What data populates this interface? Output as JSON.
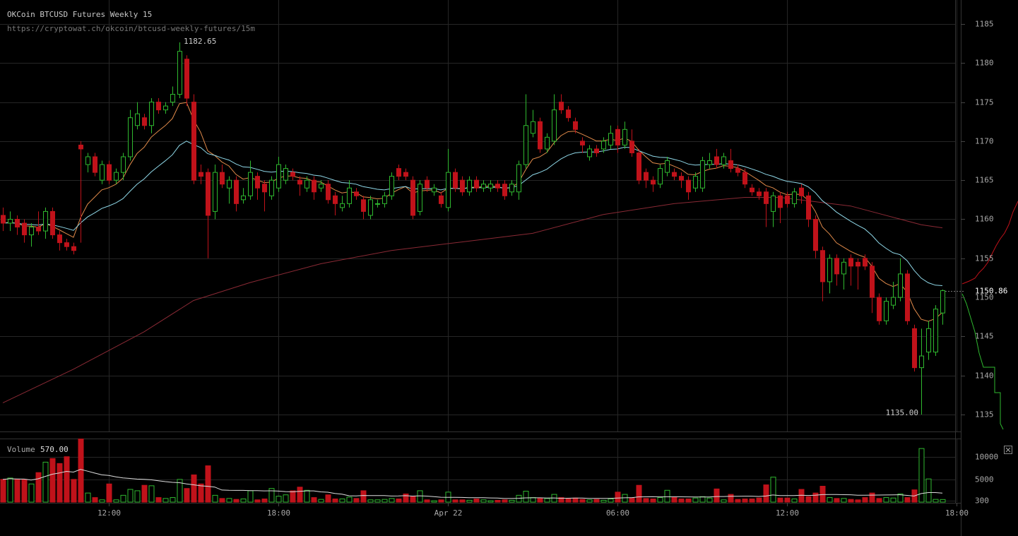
{
  "chart_data": {
    "type": "candlestick",
    "title": "OKCoin BTCUSD Futures Weekly 15",
    "subtitle": "https://cryptowat.ch/okcoin/btcusd-weekly-futures/15m",
    "xlim": [
      -0.4,
      135.6
    ],
    "xticks": [
      {
        "value": 15,
        "label": "12:00"
      },
      {
        "value": 39,
        "label": "18:00"
      },
      {
        "value": 63,
        "label": "Apr 22"
      },
      {
        "value": 87,
        "label": "06:00"
      },
      {
        "value": 111,
        "label": "12:00"
      },
      {
        "value": 135,
        "label": "18:00"
      }
    ],
    "ylim": [
      1132.83,
      1188.07
    ],
    "yticks": [
      1135,
      1140,
      1145,
      1150,
      1155,
      1160,
      1165,
      1170,
      1175,
      1180,
      1185
    ],
    "up_color": "#2fb82f",
    "down_color": "#c0121a",
    "grid": true,
    "candles": [
      [
        1160.5,
        1161.5,
        1158.5,
        1159.5
      ],
      [
        1159.5,
        1161,
        1158.5,
        1160
      ],
      [
        1160,
        1160.5,
        1158,
        1159
      ],
      [
        1159.5,
        1160,
        1157,
        1158
      ],
      [
        1158,
        1159.5,
        1156.5,
        1159
      ],
      [
        1159,
        1161,
        1158,
        1158.5
      ],
      [
        1158.5,
        1161.5,
        1157.5,
        1161
      ],
      [
        1161,
        1161.5,
        1157.5,
        1158
      ],
      [
        1158,
        1158.5,
        1156,
        1157
      ],
      [
        1157,
        1157.5,
        1156,
        1156.5
      ],
      [
        1156.5,
        1157,
        1155.5,
        1156
      ],
      [
        1169.5,
        1170,
        1157,
        1169
      ],
      [
        1167,
        1168.5,
        1166,
        1168
      ],
      [
        1168,
        1168.5,
        1165.5,
        1166
      ],
      [
        1165,
        1167.5,
        1164.5,
        1167
      ],
      [
        1167,
        1167.5,
        1164.5,
        1165
      ],
      [
        1165,
        1166.5,
        1164.5,
        1166
      ],
      [
        1166,
        1168.5,
        1165,
        1168
      ],
      [
        1168,
        1174,
        1167.5,
        1173
      ],
      [
        1172,
        1175,
        1171.5,
        1173.5
      ],
      [
        1173,
        1173.5,
        1171.5,
        1172
      ],
      [
        1172,
        1175.5,
        1171,
        1175
      ],
      [
        1175,
        1175.5,
        1173.5,
        1174
      ],
      [
        1174,
        1175,
        1173.5,
        1174.5
      ],
      [
        1175,
        1177,
        1174.5,
        1176
      ],
      [
        1176,
        1182.65,
        1175.5,
        1181.5
      ],
      [
        1180.5,
        1181,
        1174.5,
        1175.5
      ],
      [
        1175,
        1176,
        1164.5,
        1165
      ],
      [
        1166,
        1167,
        1164.5,
        1165.5
      ],
      [
        1166,
        1166.5,
        1155,
        1160.5
      ],
      [
        1161,
        1167,
        1160,
        1166
      ],
      [
        1166,
        1167,
        1164,
        1164.5
      ],
      [
        1164,
        1165.5,
        1162,
        1165
      ],
      [
        1165,
        1165.5,
        1161,
        1162
      ],
      [
        1162.5,
        1164,
        1162,
        1163
      ],
      [
        1163,
        1167.5,
        1162.5,
        1166
      ],
      [
        1165.5,
        1166,
        1162.5,
        1164
      ],
      [
        1164.5,
        1165,
        1161,
        1163.5
      ],
      [
        1163,
        1165.5,
        1162.5,
        1165
      ],
      [
        1164,
        1168,
        1163.5,
        1167
      ],
      [
        1165,
        1167,
        1164.5,
        1166.5
      ],
      [
        1166,
        1166.5,
        1165,
        1165.5
      ],
      [
        1165,
        1165.5,
        1163,
        1164.5
      ],
      [
        1164,
        1165.5,
        1163.5,
        1165
      ],
      [
        1165,
        1165.5,
        1162.5,
        1163.5
      ],
      [
        1164,
        1165,
        1163.5,
        1164.5
      ],
      [
        1164.5,
        1165,
        1162,
        1162.5
      ],
      [
        1163,
        1163.5,
        1160.5,
        1162
      ],
      [
        1161.5,
        1163,
        1161,
        1162
      ],
      [
        1162,
        1165,
        1161.5,
        1164
      ],
      [
        1163.5,
        1164,
        1162.5,
        1163
      ],
      [
        1162.5,
        1163,
        1160,
        1161
      ],
      [
        1160.5,
        1163,
        1160,
        1162.5
      ],
      [
        1162,
        1162.5,
        1161.5,
        1162
      ],
      [
        1162,
        1163.5,
        1161.5,
        1163
      ],
      [
        1163,
        1166,
        1162.5,
        1165.5
      ],
      [
        1166.5,
        1167,
        1165,
        1165.5
      ],
      [
        1166,
        1166.5,
        1165,
        1165.5
      ],
      [
        1165,
        1165.5,
        1160,
        1160.5
      ],
      [
        1161,
        1165,
        1160.5,
        1164.5
      ],
      [
        1165,
        1165.5,
        1163.5,
        1164
      ],
      [
        1163.5,
        1164.5,
        1163,
        1164
      ],
      [
        1163,
        1163.5,
        1161.5,
        1162
      ],
      [
        1161.5,
        1169,
        1161,
        1166
      ],
      [
        1166,
        1166.5,
        1163.5,
        1164
      ],
      [
        1165,
        1165.5,
        1163,
        1163.5
      ],
      [
        1163.5,
        1165.5,
        1163,
        1165
      ],
      [
        1165,
        1165.5,
        1163.5,
        1164
      ],
      [
        1164,
        1165,
        1163.5,
        1164.5
      ],
      [
        1164,
        1165,
        1163.5,
        1164.5
      ],
      [
        1164.5,
        1165,
        1163.5,
        1164
      ],
      [
        1164.5,
        1165,
        1162.5,
        1163
      ],
      [
        1163.5,
        1165,
        1163,
        1164.5
      ],
      [
        1163.5,
        1167.5,
        1162.5,
        1167
      ],
      [
        1167,
        1176,
        1166.5,
        1172
      ],
      [
        1171,
        1174,
        1170.5,
        1172.5
      ],
      [
        1172.5,
        1173,
        1168.5,
        1169
      ],
      [
        1169,
        1171,
        1168.5,
        1170.5
      ],
      [
        1170,
        1176,
        1169.5,
        1174
      ],
      [
        1175,
        1176,
        1173.5,
        1174
      ],
      [
        1174,
        1174.5,
        1172.5,
        1173
      ],
      [
        1172.5,
        1173,
        1171,
        1171.5
      ],
      [
        1170,
        1170.5,
        1168.5,
        1169.5
      ],
      [
        1168,
        1169.5,
        1167.5,
        1169
      ],
      [
        1169,
        1169.5,
        1168,
        1168.5
      ],
      [
        1169,
        1170.5,
        1168.5,
        1170
      ],
      [
        1169.5,
        1172,
        1169,
        1171
      ],
      [
        1171.5,
        1172,
        1168.5,
        1169.5
      ],
      [
        1169.5,
        1172.5,
        1169,
        1171.5
      ],
      [
        1170,
        1171.5,
        1168,
        1168.5
      ],
      [
        1168.5,
        1169,
        1164.5,
        1165
      ],
      [
        1166,
        1166.5,
        1164,
        1165
      ],
      [
        1165,
        1165.5,
        1163.5,
        1164.5
      ],
      [
        1164.5,
        1167,
        1164,
        1166.5
      ],
      [
        1166,
        1168,
        1165.5,
        1167.5
      ],
      [
        1166,
        1166.5,
        1165,
        1165.5
      ],
      [
        1165.5,
        1166,
        1164,
        1165
      ],
      [
        1165,
        1165.5,
        1162.5,
        1163.5
      ],
      [
        1164,
        1166,
        1163.5,
        1165.5
      ],
      [
        1164,
        1168,
        1163.5,
        1167.5
      ],
      [
        1167,
        1168.5,
        1166.5,
        1167.5
      ],
      [
        1168,
        1169,
        1166.5,
        1167
      ],
      [
        1167,
        1168.5,
        1166.5,
        1168
      ],
      [
        1167.5,
        1169,
        1166,
        1166.5
      ],
      [
        1166.5,
        1167,
        1165.5,
        1166
      ],
      [
        1166,
        1166.5,
        1164,
        1164.5
      ],
      [
        1164,
        1164.5,
        1163,
        1163.5
      ],
      [
        1163.5,
        1164,
        1162.5,
        1163
      ],
      [
        1163.5,
        1164,
        1159,
        1162
      ],
      [
        1161,
        1163.5,
        1159,
        1163
      ],
      [
        1163,
        1163.5,
        1159.5,
        1161.5
      ],
      [
        1163,
        1163.5,
        1161.5,
        1162
      ],
      [
        1162,
        1164,
        1161.5,
        1163.5
      ],
      [
        1164,
        1164.5,
        1162,
        1163
      ],
      [
        1163,
        1163.5,
        1159,
        1160
      ],
      [
        1160,
        1160.5,
        1155,
        1156
      ],
      [
        1156,
        1156.5,
        1149.5,
        1152
      ],
      [
        1152,
        1155.5,
        1150.5,
        1155
      ],
      [
        1155,
        1155.5,
        1151.5,
        1153
      ],
      [
        1153,
        1155,
        1151,
        1154.5
      ],
      [
        1155,
        1155.5,
        1151.5,
        1154
      ],
      [
        1154.5,
        1155,
        1151,
        1154
      ],
      [
        1155,
        1155.5,
        1153.5,
        1154
      ],
      [
        1154,
        1154.5,
        1148,
        1150
      ],
      [
        1150,
        1150.5,
        1146.5,
        1147
      ],
      [
        1147,
        1150,
        1146.5,
        1149.5
      ],
      [
        1149,
        1152,
        1148.5,
        1150
      ],
      [
        1150,
        1155,
        1149.5,
        1153
      ],
      [
        1153,
        1153.5,
        1146.5,
        1147
      ],
      [
        1146,
        1146.5,
        1140.5,
        1141
      ],
      [
        1141,
        1146,
        1135,
        1142.5
      ],
      [
        1143,
        1147,
        1142,
        1146
      ],
      [
        1143,
        1149,
        1142.5,
        1148.5
      ],
      [
        1148,
        1151,
        1146.5,
        1150.86
      ]
    ],
    "high_label": "1182.65",
    "low_label": "1135.00",
    "last_price_label": "1150.86",
    "ma_long": {
      "color": "#8a2a35",
      "x": [
        0,
        10,
        20,
        27,
        35,
        45,
        55,
        65,
        75,
        85,
        95,
        105,
        110,
        120,
        130,
        133
      ],
      "values": [
        1136.5,
        1140.8,
        1145.6,
        1149.6,
        1151.9,
        1154.3,
        1156,
        1157.1,
        1158.2,
        1160.6,
        1162,
        1162.8,
        1162.8,
        1161.7,
        1159.3,
        1158.9
      ]
    },
    "volume_title": "Volume",
    "volume_last": "570.00",
    "vylim": [
      0,
      14000
    ],
    "vyticks": [
      300,
      5000,
      10000
    ],
    "volumes": [
      5000,
      5300,
      5000,
      5000,
      4000,
      6500,
      8800,
      9600,
      8500,
      10000,
      5000,
      13900,
      2000,
      1000,
      500,
      4000,
      500,
      1500,
      2800,
      2500,
      3700,
      3600,
      1000,
      800,
      1000,
      5000,
      3000,
      6000,
      4000,
      8000,
      1500,
      800,
      800,
      600,
      700,
      2500,
      500,
      700,
      3000,
      1300,
      1600,
      2500,
      3300,
      2600,
      1000,
      600,
      1600,
      700,
      700,
      1100,
      800,
      2500,
      500,
      500,
      600,
      800,
      700,
      1800,
      1300,
      2500,
      500,
      300,
      500,
      2200,
      500,
      500,
      400,
      700,
      500,
      300,
      400,
      500,
      400,
      1500,
      2400,
      1000,
      800,
      800,
      1700,
      1000,
      700,
      900,
      600,
      500,
      600,
      400,
      700,
      2200,
      1700,
      900,
      3700,
      800,
      700,
      1000,
      2600,
      1000,
      700,
      700,
      900,
      1200,
      900,
      2900,
      500,
      1700,
      600,
      700,
      700,
      900,
      3800,
      5500,
      900,
      900,
      700,
      2800,
      1200,
      2000,
      3500,
      1000,
      800,
      800,
      600,
      500,
      1000,
      2000,
      800,
      1000,
      900,
      1800,
      1000,
      2700,
      11800,
      5100,
      600,
      570
    ]
  }
}
